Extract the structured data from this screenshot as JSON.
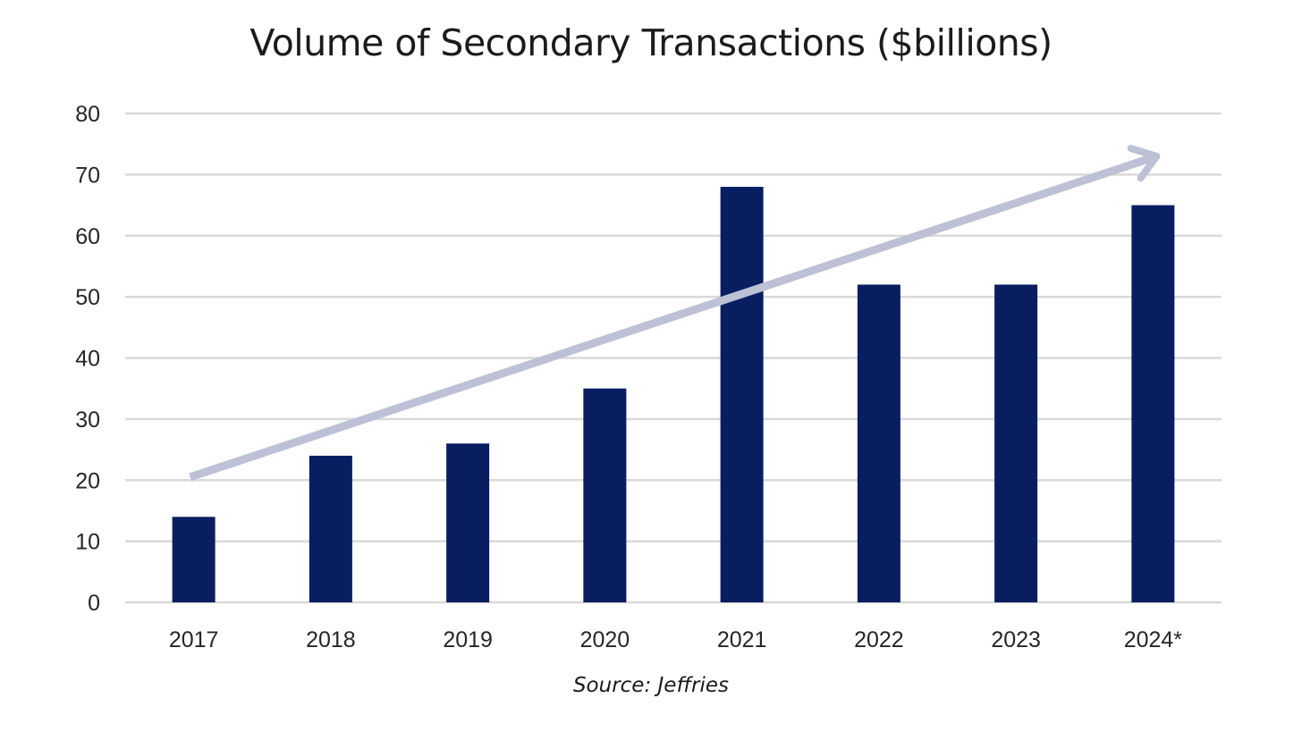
{
  "chart_data": {
    "type": "bar",
    "title": "Volume of Secondary Transactions ($billions)",
    "categories": [
      "2017",
      "2018",
      "2019",
      "2020",
      "2021",
      "2022",
      "2023",
      "2024*"
    ],
    "values": [
      14,
      24,
      26,
      35,
      68,
      52,
      52,
      65
    ],
    "xlabel": "",
    "ylabel": "",
    "ylim": [
      0,
      80
    ],
    "yticks": [
      "0",
      "10",
      "20",
      "30",
      "40",
      "50",
      "60",
      "70",
      "80"
    ],
    "grid": true,
    "annotations": [
      {
        "type": "trend-arrow",
        "from": {
          "category": "2017",
          "value": 20.5
        },
        "to": {
          "category": "2024*",
          "value": 73
        }
      }
    ],
    "source": "Source: Jeffries",
    "colors": {
      "bar": "#091d61",
      "grid": "#d9d9d9",
      "trend_arrow": "#bcc1d6"
    }
  }
}
